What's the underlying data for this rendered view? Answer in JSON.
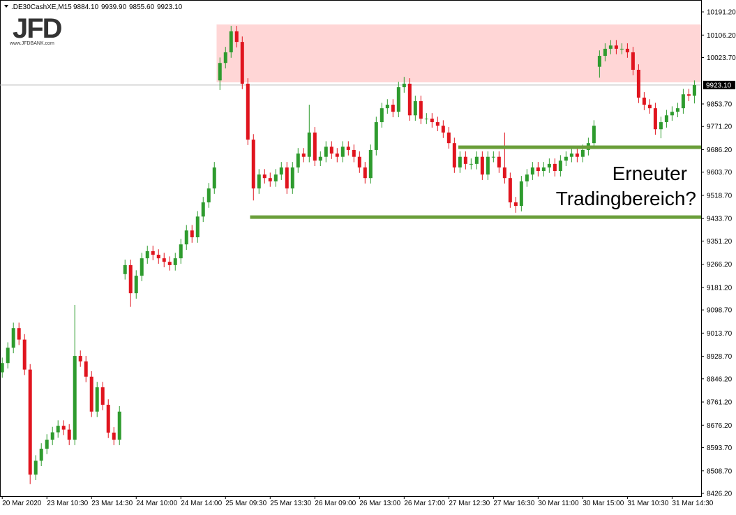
{
  "chart_data": {
    "type": "candlestick",
    "title": ".DE30CashXE,M15",
    "header_values": [
      "9884.10",
      "9939.90",
      "9855.60",
      "9923.10"
    ],
    "logo": "JFD",
    "logo_url": "www.JFDBANK.com",
    "annotation": [
      "Erneuter",
      "Tradingbereich?"
    ],
    "up_color": "#2e9b2e",
    "down_color": "#e0141e",
    "xlim": [
      -0.4,
      125.2
    ],
    "ylim": [
      8416,
      10222
    ],
    "xticks": [
      {
        "value": 0,
        "label": "20 Mar 2020"
      },
      {
        "value": 8,
        "label": "23 Mar 10:30"
      },
      {
        "value": 16,
        "label": "23 Mar 14:30"
      },
      {
        "value": 24,
        "label": "24 Mar 10:00"
      },
      {
        "value": 32,
        "label": "24 Mar 14:00"
      },
      {
        "value": 40,
        "label": "25 Mar 09:30"
      },
      {
        "value": 48,
        "label": "25 Mar 13:30"
      },
      {
        "value": 56,
        "label": "26 Mar 09:00"
      },
      {
        "value": 64,
        "label": "26 Mar 13:00"
      },
      {
        "value": 72,
        "label": "26 Mar 17:00"
      },
      {
        "value": 80,
        "label": "27 Mar 12:30"
      },
      {
        "value": 88,
        "label": "27 Mar 16:30"
      },
      {
        "value": 96,
        "label": "30 Mar 11:00"
      },
      {
        "value": 104,
        "label": "30 Mar 15:00"
      },
      {
        "value": 112,
        "label": "31 Mar 10:30"
      },
      {
        "value": 120,
        "label": "31 Mar 14:30"
      }
    ],
    "yticks": [
      {
        "value": 10191.2,
        "label": "10191.20"
      },
      {
        "value": 10106.2,
        "label": "10106.20"
      },
      {
        "value": 10023.7,
        "label": "10023.70"
      },
      {
        "value": 9853.7,
        "label": "9853.70"
      },
      {
        "value": 9771.2,
        "label": "9771.20"
      },
      {
        "value": 9686.2,
        "label": "9686.20"
      },
      {
        "value": 9603.7,
        "label": "9603.70"
      },
      {
        "value": 9518.7,
        "label": "9518.70"
      },
      {
        "value": 9433.7,
        "label": "9433.70"
      },
      {
        "value": 9351.2,
        "label": "9351.20"
      },
      {
        "value": 9266.2,
        "label": "9266.20"
      },
      {
        "value": 9181.2,
        "label": "9181.20"
      },
      {
        "value": 9098.7,
        "label": "9098.70"
      },
      {
        "value": 9013.7,
        "label": "9013.70"
      },
      {
        "value": 8928.7,
        "label": "8928.70"
      },
      {
        "value": 8846.2,
        "label": "8846.20"
      },
      {
        "value": 8761.2,
        "label": "8761.20"
      },
      {
        "value": 8676.2,
        "label": "8676.20"
      },
      {
        "value": 8593.7,
        "label": "8593.70"
      },
      {
        "value": 8508.7,
        "label": "8508.70"
      },
      {
        "value": 8426.2,
        "label": "8426.20"
      }
    ],
    "last_price": {
      "value": 9923.1,
      "label": "9923.10"
    },
    "zone": {
      "from": 9933,
      "to": 10145,
      "start": 38.4,
      "color": "#ffd6d6"
    },
    "levels": [
      {
        "value": 9439,
        "start": 44.4,
        "color": "#6a9e3a"
      },
      {
        "value": 9695,
        "start": 81.7,
        "color": "#6a9e3a"
      }
    ],
    "open": [
      8870,
      8904,
      8960,
      9032,
      8990,
      8880,
      8495,
      8546,
      8590,
      8623,
      8650,
      8674,
      8660,
      8623,
      8930,
      8910,
      8854,
      8726,
      8815,
      8751,
      8649,
      8623,
      9230,
      9263,
      9160,
      9224,
      9288,
      9314,
      9301,
      9288,
      9275,
      9263,
      9288,
      9339,
      9390,
      9365,
      9441,
      9493,
      9544,
      9940,
      10004,
      10043,
      10120,
      10081,
      9928,
      9723,
      9544,
      9595,
      9582,
      9570,
      9595,
      9621,
      9544,
      9621,
      9672,
      9660,
      9749,
      9646,
      9660,
      9697,
      9672,
      9660,
      9697,
      9685,
      9660,
      9621,
      9582,
      9685,
      9787,
      9838,
      9851,
      9825,
      9915,
      9928,
      9812,
      9864,
      9800,
      9800,
      9787,
      9774,
      9749,
      9710,
      9621,
      9660,
      9634,
      9634,
      9660,
      9595,
      9660,
      9660,
      9621,
      9582,
      9493,
      9480,
      9570,
      9595,
      9621,
      9608,
      9621,
      9634,
      9608,
      9646,
      9660,
      9672,
      9660,
      9685,
      9710,
      9990,
      10030,
      10056,
      10068,
      10056,
      10056,
      10043,
      9979,
      9877,
      9851,
      9838,
      9761,
      9787,
      9812,
      9825,
      9838,
      9889,
      9884.1
    ],
    "high": [
      8924,
      8980,
      9052,
      9052,
      9010,
      8900,
      8566,
      8610,
      8643,
      8670,
      8694,
      8694,
      8680,
      9117,
      8950,
      8930,
      8874,
      8835,
      8835,
      8771,
      8669,
      8746,
      9283,
      9283,
      9244,
      9308,
      9334,
      9334,
      9321,
      9308,
      9295,
      9308,
      9359,
      9410,
      9410,
      9461,
      9513,
      9564,
      9641,
      10024,
      10063,
      10140,
      10140,
      10101,
      9948,
      9743,
      9615,
      9615,
      9602,
      9615,
      9641,
      9641,
      9641,
      9692,
      9692,
      9851,
      9769,
      9680,
      9717,
      9717,
      9692,
      9717,
      9717,
      9705,
      9680,
      9641,
      9705,
      9807,
      9858,
      9871,
      9871,
      9935,
      9953,
      9948,
      9884,
      9884,
      9820,
      9820,
      9807,
      9794,
      9769,
      9730,
      9680,
      9680,
      9654,
      9680,
      9680,
      9680,
      9680,
      9680,
      9749,
      9602,
      9513,
      9590,
      9615,
      9641,
      9641,
      9641,
      9654,
      9654,
      9666,
      9680,
      9692,
      9692,
      9705,
      9730,
      9794,
      10050,
      10076,
      10088,
      10088,
      10076,
      10076,
      10063,
      9999,
      9897,
      9871,
      9858,
      9807,
      9832,
      9845,
      9858,
      9909,
      9909,
      9939.9
    ],
    "low": [
      8850,
      8884,
      8940,
      8970,
      8860,
      8460,
      8475,
      8526,
      8570,
      8603,
      8630,
      8640,
      8603,
      8603,
      8890,
      8834,
      8706,
      8706,
      8731,
      8629,
      8603,
      8603,
      9210,
      9110,
      9140,
      9204,
      9268,
      9281,
      9268,
      9255,
      9243,
      9243,
      9268,
      9319,
      9345,
      9345,
      9421,
      9473,
      9524,
      9905,
      9984,
      10023,
      10061,
      9908,
      9703,
      9500,
      9524,
      9562,
      9550,
      9550,
      9575,
      9524,
      9524,
      9601,
      9640,
      9640,
      9626,
      9626,
      9640,
      9652,
      9640,
      9640,
      9665,
      9640,
      9601,
      9562,
      9562,
      9665,
      9767,
      9818,
      9805,
      9805,
      9895,
      9792,
      9792,
      9780,
      9780,
      9767,
      9754,
      9729,
      9690,
      9601,
      9601,
      9614,
      9614,
      9614,
      9575,
      9575,
      9640,
      9601,
      9562,
      9473,
      9455,
      9460,
      9550,
      9575,
      9588,
      9588,
      9601,
      9588,
      9588,
      9626,
      9640,
      9640,
      9640,
      9665,
      9690,
      9950,
      10010,
      10036,
      10036,
      10036,
      10023,
      9959,
      9857,
      9831,
      9818,
      9741,
      9728,
      9767,
      9792,
      9805,
      9818,
      9864,
      9855.6
    ],
    "close": [
      8904,
      8960,
      9032,
      8990,
      8880,
      8495,
      8546,
      8590,
      8623,
      8650,
      8674,
      8660,
      8623,
      8930,
      8910,
      8854,
      8726,
      8815,
      8751,
      8649,
      8623,
      8726,
      9263,
      9160,
      9224,
      9288,
      9314,
      9301,
      9288,
      9275,
      9263,
      9288,
      9339,
      9390,
      9365,
      9441,
      9493,
      9544,
      9621,
      10004,
      10043,
      10120,
      10081,
      9928,
      9723,
      9544,
      9595,
      9582,
      9570,
      9595,
      9621,
      9544,
      9621,
      9672,
      9660,
      9749,
      9646,
      9660,
      9697,
      9672,
      9660,
      9697,
      9685,
      9660,
      9621,
      9582,
      9685,
      9787,
      9838,
      9851,
      9825,
      9915,
      9928,
      9812,
      9864,
      9800,
      9800,
      9787,
      9774,
      9749,
      9710,
      9621,
      9660,
      9634,
      9634,
      9660,
      9595,
      9660,
      9660,
      9621,
      9582,
      9493,
      9480,
      9570,
      9595,
      9621,
      9608,
      9621,
      9634,
      9608,
      9646,
      9660,
      9672,
      9660,
      9685,
      9710,
      9774,
      10030,
      10056,
      10068,
      10056,
      10056,
      10043,
      9979,
      9877,
      9851,
      9838,
      9761,
      9787,
      9812,
      9825,
      9838,
      9889,
      9884.1,
      9923.1
    ]
  }
}
